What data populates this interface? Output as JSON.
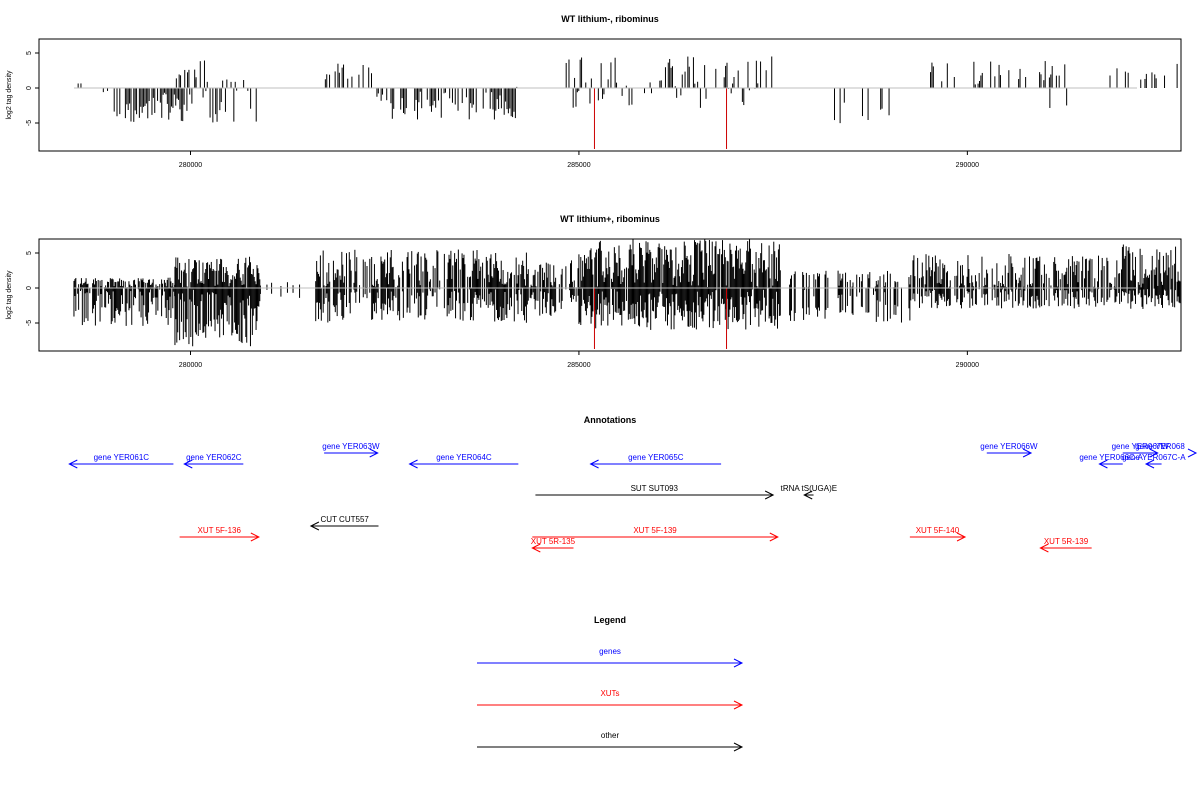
{
  "colors": {
    "gene": "#0000ff",
    "xut": "#ff0000",
    "other": "#000000",
    "baseline": "#bfbfbf",
    "bar": "#000000",
    "marker": "#cc0000"
  },
  "chart_data": [
    {
      "type": "bar",
      "title": "WT lithium-, ribominus",
      "ylabel": "log2 tag density",
      "xlim": [
        278050,
        292750
      ],
      "ylim": [
        -9,
        7
      ],
      "x_ticks": [
        280000,
        285000,
        290000
      ],
      "x_tick_labels": [
        "280000",
        "285000",
        "290000"
      ],
      "y_ticks": [
        -5,
        0,
        5
      ],
      "y_tick_labels": [
        "-5",
        "0",
        "5"
      ],
      "range": [
        278500,
        293500
      ],
      "density": "sparse",
      "seed": 11,
      "segments": [
        {
          "from": 278500,
          "to": 279000,
          "min": -1.5,
          "max": 1.5,
          "p": 0.1
        },
        {
          "from": 279000,
          "to": 280000,
          "min": -5,
          "max": -0.5,
          "p": 0.75
        },
        {
          "from": 279800,
          "to": 280100,
          "min": 1,
          "max": 3.5,
          "p": 0.5
        },
        {
          "from": 280000,
          "to": 280900,
          "min": -5,
          "max": 4,
          "p": 0.6
        },
        {
          "from": 281700,
          "to": 282400,
          "min": 0.5,
          "max": 3.5,
          "p": 0.45
        },
        {
          "from": 282400,
          "to": 284200,
          "min": -4.5,
          "max": -0.5,
          "p": 0.6
        },
        {
          "from": 284200,
          "to": 284800,
          "min": -1,
          "max": 1,
          "p": 0.1
        },
        {
          "from": 284800,
          "to": 287500,
          "min": -3,
          "max": 4.5,
          "p": 0.55
        },
        {
          "from": 288200,
          "to": 289100,
          "min": -5.2,
          "max": -0.5,
          "p": 0.3
        },
        {
          "from": 289400,
          "to": 291300,
          "min": 0.5,
          "max": 4,
          "p": 0.3
        },
        {
          "from": 290900,
          "to": 291400,
          "min": -3,
          "max": -0.5,
          "p": 0.1
        },
        {
          "from": 291800,
          "to": 292600,
          "min": 0.5,
          "max": 3,
          "p": 0.25
        },
        {
          "from": 292700,
          "to": 293500,
          "min": 0.5,
          "max": 3.5,
          "p": 0.4
        }
      ],
      "markers": [
        285200,
        286900
      ]
    },
    {
      "type": "bar",
      "title": "WT lithium+, ribominus",
      "ylabel": "log2 tag density",
      "xlim": [
        278050,
        292750
      ],
      "ylim": [
        -9,
        7
      ],
      "x_ticks": [
        280000,
        285000,
        290000
      ],
      "x_tick_labels": [
        "280000",
        "285000",
        "290000"
      ],
      "y_ticks": [
        -5,
        0,
        5
      ],
      "y_tick_labels": [
        "-5",
        "0",
        "5"
      ],
      "range": [
        278500,
        293500
      ],
      "density": "dense",
      "seed": 29,
      "segments": [
        {
          "from": 278500,
          "to": 279800,
          "min": -5.5,
          "max": 1.5,
          "p": 0.85
        },
        {
          "from": 279800,
          "to": 280900,
          "min": -8.5,
          "max": 4.5,
          "p": 0.95
        },
        {
          "from": 280900,
          "to": 281600,
          "min": -1.5,
          "max": 1,
          "p": 0.15
        },
        {
          "from": 281600,
          "to": 284400,
          "min": -5,
          "max": 5.5,
          "p": 0.75
        },
        {
          "from": 284400,
          "to": 285000,
          "min": -4,
          "max": 4,
          "p": 0.7
        },
        {
          "from": 285000,
          "to": 287600,
          "min": -6,
          "max": 7,
          "p": 0.95
        },
        {
          "from": 287700,
          "to": 289300,
          "min": -5,
          "max": 2.5,
          "p": 0.4
        },
        {
          "from": 289300,
          "to": 291900,
          "min": -3,
          "max": 5,
          "p": 0.7
        },
        {
          "from": 291900,
          "to": 292700,
          "min": -3,
          "max": 6.5,
          "p": 0.85
        },
        {
          "from": 292700,
          "to": 293500,
          "min": -3,
          "max": 4,
          "p": 0.4
        }
      ],
      "markers": [
        285200,
        286900
      ]
    }
  ],
  "annotations": {
    "title": "Annotations",
    "items": [
      {
        "label": "gene YER061C",
        "kind": "gene",
        "start": 278440,
        "end": 279780,
        "dir": "left",
        "row": 1
      },
      {
        "label": "gene YER062C",
        "kind": "gene",
        "start": 279920,
        "end": 280680,
        "dir": "left",
        "row": 1
      },
      {
        "label": "gene YER063W",
        "kind": "gene",
        "start": 281720,
        "end": 282410,
        "dir": "right",
        "row": 0
      },
      {
        "label": "gene YER064C",
        "kind": "gene",
        "start": 282820,
        "end": 284220,
        "dir": "left",
        "row": 1
      },
      {
        "label": "gene YER065C",
        "kind": "gene",
        "start": 285150,
        "end": 286830,
        "dir": "left",
        "row": 1
      },
      {
        "label": "gene YER066W",
        "kind": "gene",
        "start": 290250,
        "end": 290820,
        "dir": "right",
        "row": 0
      },
      {
        "label": "gene YER067W",
        "kind": "gene",
        "start": 292000,
        "end": 292450,
        "dir": "right",
        "row": 0
      },
      {
        "label": "gene YER066C-A",
        "kind": "gene",
        "start": 291700,
        "end": 292000,
        "dir": "left",
        "row": 1
      },
      {
        "label": "gene YER067C-A",
        "kind": "gene",
        "start": 292300,
        "end": 292500,
        "dir": "left",
        "row": 1
      },
      {
        "label": "gene YER068",
        "kind": "gene",
        "start": 293100,
        "end": 295000,
        "dir": "right",
        "row": 0
      },
      {
        "label": "SUT SUT093",
        "kind": "other",
        "start": 284440,
        "end": 287500,
        "dir": "right",
        "row": 2
      },
      {
        "label": "tRNA tS(UGA)E",
        "kind": "other",
        "start": 287900,
        "end": 288020,
        "dir": "left",
        "row": 2
      },
      {
        "label": "CUT CUT557",
        "kind": "other",
        "start": 281550,
        "end": 282420,
        "dir": "left",
        "row": 3
      },
      {
        "label": "XUT 5F-136",
        "kind": "xut",
        "start": 279860,
        "end": 280880,
        "dir": "right",
        "row": 4
      },
      {
        "label": "XUT 5R-135",
        "kind": "xut",
        "start": 284400,
        "end": 284930,
        "dir": "left",
        "row": 5
      },
      {
        "label": "XUT 5F-139",
        "kind": "xut",
        "start": 284400,
        "end": 287560,
        "dir": "right",
        "row": 4
      },
      {
        "label": "XUT 5F-140",
        "kind": "xut",
        "start": 289260,
        "end": 289970,
        "dir": "right",
        "row": 4
      },
      {
        "label": "XUT 5R-139",
        "kind": "xut",
        "start": 290940,
        "end": 291600,
        "dir": "left",
        "row": 5
      }
    ]
  },
  "legend": {
    "title": "Legend",
    "items": [
      {
        "label": "genes",
        "kind": "gene"
      },
      {
        "label": "XUTs",
        "kind": "xut"
      },
      {
        "label": "other",
        "kind": "other"
      }
    ]
  }
}
